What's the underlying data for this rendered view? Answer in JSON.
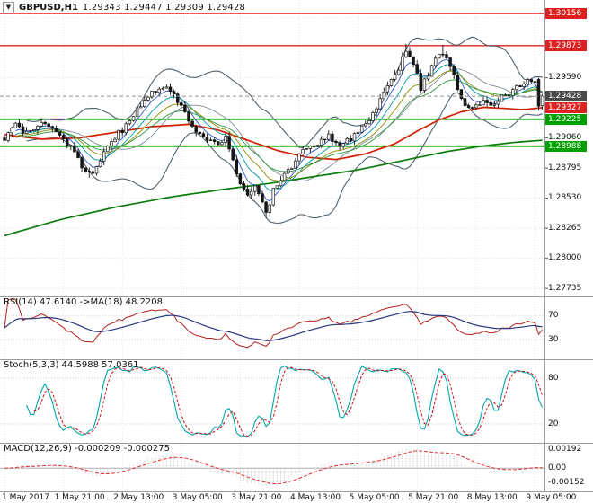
{
  "title_bar": {
    "dropdown_icon": "▼",
    "symbol": "GBPUSD,H1",
    "ohlc": "1.29343 1.29447 1.29309 1.29428"
  },
  "time_axis": {
    "labels": [
      "1 May 2017",
      "1 May 21:00",
      "2 May 13:00",
      "3 May 05:00",
      "3 May 21:00",
      "4 May 13:00",
      "5 May 05:00",
      "5 May 21:00",
      "8 May 13:00",
      "9 May 05:00"
    ],
    "bars_per_label": 16
  },
  "colors": {
    "grid": "#e0e0e0",
    "separator": "#9c9c9c",
    "axis_text": "#111111",
    "candle_border": "#151515",
    "candle_bull": "#ffffff",
    "candle_bear": "#151515",
    "bollinger": "#50606c",
    "ma_red": "#d02000",
    "ma_green_slow": "#0c7c0c",
    "ma_thin": [
      "#2b55cc",
      "#00999f",
      "#8a8a00",
      "#2f9440"
    ],
    "hline_red": "#e02020",
    "hline_green": "#00a000",
    "current_line": "#909090",
    "rsi_line": "#b22020",
    "rsi_ma": "#27357d",
    "stoch_k": "#00a5ad",
    "stoch_d": "#cc1111",
    "macd_hist": "#bbbbbb",
    "macd_signal": "#e03030"
  },
  "chart_data": [
    {
      "id": "main",
      "type": "candlestick",
      "symbol": "GBPUSD",
      "timeframe": "H1",
      "bars": 147,
      "ylim": [
        1.27665,
        1.30275
      ],
      "current_price": 1.29428,
      "price_anchors": [
        [
          0,
          1.2906
        ],
        [
          3,
          1.2916
        ],
        [
          6,
          1.291
        ],
        [
          9,
          1.2919
        ],
        [
          12,
          1.2914
        ],
        [
          16,
          1.2907
        ],
        [
          19,
          1.2893
        ],
        [
          22,
          1.2877
        ],
        [
          24,
          1.2874
        ],
        [
          27,
          1.2892
        ],
        [
          30,
          1.2907
        ],
        [
          33,
          1.2916
        ],
        [
          36,
          1.293
        ],
        [
          40,
          1.2945
        ],
        [
          43,
          1.2952
        ],
        [
          46,
          1.2942
        ],
        [
          49,
          1.2928
        ],
        [
          52,
          1.2912
        ],
        [
          55,
          1.2903
        ],
        [
          58,
          1.2899
        ],
        [
          60,
          1.2906
        ],
        [
          62,
          1.2886
        ],
        [
          64,
          1.2868
        ],
        [
          66,
          1.2857
        ],
        [
          68,
          1.2863
        ],
        [
          70,
          1.2849
        ],
        [
          71,
          1.2839
        ],
        [
          73,
          1.2859
        ],
        [
          76,
          1.2873
        ],
        [
          79,
          1.2886
        ],
        [
          82,
          1.2897
        ],
        [
          85,
          1.2902
        ],
        [
          88,
          1.2908
        ],
        [
          91,
          1.2898
        ],
        [
          94,
          1.2905
        ],
        [
          97,
          1.2915
        ],
        [
          100,
          1.2926
        ],
        [
          103,
          1.2944
        ],
        [
          106,
          1.2962
        ],
        [
          109,
          1.2981
        ],
        [
          111,
          1.2969
        ],
        [
          113,
          1.2951
        ],
        [
          115,
          1.2962
        ],
        [
          117,
          1.2976
        ],
        [
          119,
          1.2982
        ],
        [
          121,
          1.2971
        ],
        [
          123,
          1.2949
        ],
        [
          125,
          1.2936
        ],
        [
          127,
          1.293
        ],
        [
          129,
          1.2938
        ],
        [
          132,
          1.2933
        ],
        [
          135,
          1.2943
        ],
        [
          138,
          1.2948
        ],
        [
          141,
          1.2954
        ],
        [
          144,
          1.2957
        ],
        [
          145,
          1.2942
        ],
        [
          146,
          1.2943
        ]
      ],
      "wick_events": [
        {
          "bar": 23,
          "low": 1.2871
        },
        {
          "bar": 71,
          "low": 1.28355
        },
        {
          "bar": 109,
          "high": 1.2989
        },
        {
          "bar": 119,
          "high": 1.2988
        }
      ],
      "final_bars": [
        {
          "o": 1.29575,
          "h": 1.2959,
          "l": 1.293,
          "c": 1.2934
        },
        {
          "o": 1.29343,
          "h": 1.29447,
          "l": 1.29309,
          "c": 1.29428
        }
      ],
      "axis_ticks": [
        1.3012,
        1.2959,
        1.2906,
        1.28795,
        1.2853,
        1.28265,
        1.28,
        1.27735
      ],
      "hlines": [
        {
          "price": 1.30156,
          "color": "red"
        },
        {
          "price": 1.29873,
          "color": "red"
        },
        {
          "price": 1.29225,
          "color": "green"
        },
        {
          "price": 1.28988,
          "color": "green"
        }
      ],
      "badges": [
        {
          "label": "1.30156",
          "value": 1.30156,
          "style": "red"
        },
        {
          "label": "1.29873",
          "value": 1.29873,
          "style": "red"
        },
        {
          "label": "1.29428",
          "value": 1.29428,
          "style": "current"
        },
        {
          "label": "1.29327",
          "value": 1.29327,
          "style": "red"
        },
        {
          "label": "1.29225",
          "value": 1.29225,
          "style": "green"
        },
        {
          "label": "1.28988",
          "value": 1.28988,
          "style": "green"
        }
      ],
      "red_ma_anchors": [
        [
          0,
          1.2909
        ],
        [
          10,
          1.2905
        ],
        [
          20,
          1.2906
        ],
        [
          30,
          1.2911
        ],
        [
          40,
          1.2916
        ],
        [
          50,
          1.2918
        ],
        [
          58,
          1.2913
        ],
        [
          66,
          1.2904
        ],
        [
          74,
          1.2895
        ],
        [
          82,
          1.2889
        ],
        [
          90,
          1.2887
        ],
        [
          98,
          1.2892
        ],
        [
          106,
          1.2901
        ],
        [
          112,
          1.2912
        ],
        [
          118,
          1.2922
        ],
        [
          124,
          1.2929
        ],
        [
          130,
          1.2933
        ],
        [
          136,
          1.2932
        ],
        [
          141,
          1.2931
        ],
        [
          146,
          1.29327
        ]
      ],
      "green_ma_anchors": [
        [
          0,
          1.282
        ],
        [
          15,
          1.2834
        ],
        [
          30,
          1.2845
        ],
        [
          45,
          1.2854
        ],
        [
          60,
          1.2861
        ],
        [
          72,
          1.2866
        ],
        [
          84,
          1.2872
        ],
        [
          96,
          1.2878
        ],
        [
          108,
          1.2886
        ],
        [
          120,
          1.2894
        ],
        [
          130,
          1.2899
        ],
        [
          138,
          1.2902
        ],
        [
          146,
          1.2904
        ]
      ],
      "bollinger_period": 20,
      "ema_periods": [
        5,
        10,
        16,
        24
      ]
    },
    {
      "id": "rsi",
      "type": "line",
      "label": "RSI(14) 47.6140 ->MA(18) 48.2208",
      "period": 14,
      "ma_period": 18,
      "value": 47.614,
      "ma_value": 48.2208,
      "levels": [
        70,
        30
      ],
      "range": [
        0,
        100
      ]
    },
    {
      "id": "stoch",
      "type": "line",
      "label": "Stoch(5,3,3) 44.5988 57.0361",
      "k_period": 5,
      "d_period": 3,
      "slowing": 3,
      "k_value": 44.5988,
      "d_value": 57.0361,
      "levels": [
        80,
        20
      ],
      "range": [
        0,
        100
      ]
    },
    {
      "id": "macd",
      "type": "histogram_line",
      "label": "MACD(12,26,9) -0.000209 -0.000275",
      "fast": 12,
      "slow": 26,
      "signal": 9,
      "value": -0.000209,
      "signal_value": -0.000275,
      "axis_ticks": [
        {
          "label": "0.00192",
          "value": 0.00192
        },
        {
          "label": "0.00",
          "value": 0
        },
        {
          "label": "-0.00152",
          "value": -0.00152
        }
      ]
    }
  ]
}
